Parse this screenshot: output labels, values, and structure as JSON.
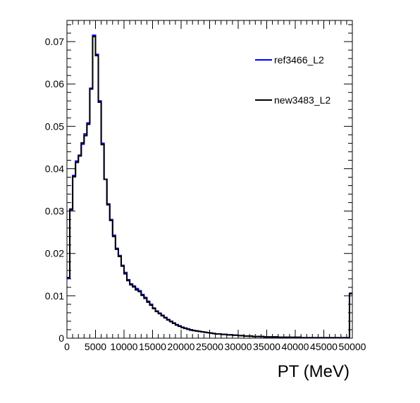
{
  "chart_data": {
    "type": "line",
    "style": "step-histogram",
    "xlabel": "PT (MeV)",
    "ylabel": "",
    "xlim": [
      0,
      50000
    ],
    "ylim": [
      0,
      0.075
    ],
    "grid": false,
    "legend_position": "top-right",
    "x_ticks": [
      "0",
      "5000",
      "10000",
      "15000",
      "20000",
      "25000",
      "30000",
      "35000",
      "40000",
      "45000",
      "50000"
    ],
    "y_ticks": [
      "0",
      "0.01",
      "0.02",
      "0.03",
      "0.04",
      "0.05",
      "0.06",
      "0.07"
    ],
    "bin_edges_start": 0,
    "bin_width": 500,
    "series": [
      {
        "name": "ref3466_L2",
        "color": "#0000ff",
        "values": [
          0.0141,
          0.0305,
          0.0384,
          0.0418,
          0.0432,
          0.0458,
          0.0482,
          0.0508,
          0.059,
          0.0715,
          0.067,
          0.056,
          0.046,
          0.0375,
          0.0317,
          0.028,
          0.0243,
          0.0212,
          0.0195,
          0.0172,
          0.0155,
          0.0138,
          0.0128,
          0.0123,
          0.0117,
          0.0112,
          0.0103,
          0.0096,
          0.0087,
          0.008,
          0.0071,
          0.0064,
          0.0059,
          0.0054,
          0.0049,
          0.0044,
          0.004,
          0.0036,
          0.0032,
          0.0029,
          0.0026,
          0.0024,
          0.0022,
          0.002,
          0.0018,
          0.0017,
          0.0016,
          0.0015,
          0.0014,
          0.0013,
          0.0012,
          0.0011,
          0.001,
          0.001,
          0.0009,
          0.0009,
          0.0008,
          0.0008,
          0.0007,
          0.0007,
          0.0006,
          0.0006,
          0.0005,
          0.0005,
          0.0005,
          0.0004,
          0.0004,
          0.0004,
          0.0004,
          0.0003,
          0.0003,
          0.0003,
          0.0003,
          0.0003,
          0.0002,
          0.0002,
          0.0002,
          0.0002,
          0.0002,
          0.0002,
          0.0002,
          0.0002,
          0.0001,
          0.0001,
          0.0001,
          0.0001,
          0.0001,
          0.0001,
          0.0001,
          0.0001,
          0.0001,
          0.0001,
          0.0001,
          0.0001,
          0.0001,
          0.0001,
          0.0001,
          0.0001,
          0.0001,
          0.0105
        ]
      },
      {
        "name": "new3483_L2",
        "color": "#000000",
        "values": [
          0.0143,
          0.0303,
          0.0381,
          0.0415,
          0.043,
          0.0461,
          0.0478,
          0.0505,
          0.0588,
          0.0712,
          0.0667,
          0.0557,
          0.0457,
          0.0375,
          0.0315,
          0.0278,
          0.024,
          0.021,
          0.0193,
          0.017,
          0.0152,
          0.0136,
          0.0126,
          0.0121,
          0.0114,
          0.011,
          0.0101,
          0.0094,
          0.0085,
          0.0078,
          0.007,
          0.0063,
          0.0058,
          0.0053,
          0.0048,
          0.0043,
          0.0039,
          0.0035,
          0.0031,
          0.0028,
          0.0025,
          0.0023,
          0.0021,
          0.0019,
          0.0018,
          0.0017,
          0.0016,
          0.0015,
          0.0014,
          0.0013,
          0.0012,
          0.0011,
          0.001,
          0.001,
          0.0009,
          0.0009,
          0.0008,
          0.0008,
          0.0007,
          0.0007,
          0.0006,
          0.0006,
          0.0005,
          0.0005,
          0.0005,
          0.0004,
          0.0004,
          0.0004,
          0.0004,
          0.0003,
          0.0003,
          0.0003,
          0.0003,
          0.0003,
          0.0002,
          0.0002,
          0.0002,
          0.0002,
          0.0002,
          0.0002,
          0.0002,
          0.0002,
          0.0001,
          0.0001,
          0.0001,
          0.0001,
          0.0001,
          0.0001,
          0.0001,
          0.0001,
          0.0001,
          0.0001,
          0.0001,
          0.0001,
          0.0001,
          0.0001,
          0.0001,
          0.0001,
          0.0001,
          0.0106
        ]
      }
    ]
  }
}
